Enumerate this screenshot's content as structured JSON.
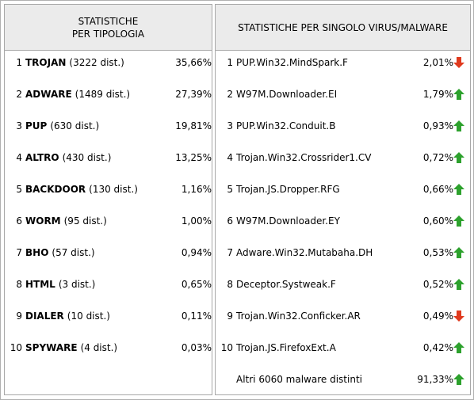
{
  "left": {
    "title": "STATISTICHE\nPER TIPOLOGIA",
    "rows": [
      {
        "rank": 1,
        "name": "TROJAN",
        "detail": "(3222 dist.)",
        "percent": "35,66%"
      },
      {
        "rank": 2,
        "name": "ADWARE",
        "detail": "(1489 dist.)",
        "percent": "27,39%"
      },
      {
        "rank": 3,
        "name": "PUP",
        "detail": "(630 dist.)",
        "percent": "19,81%"
      },
      {
        "rank": 4,
        "name": "ALTRO",
        "detail": "(430 dist.)",
        "percent": "13,25%"
      },
      {
        "rank": 5,
        "name": "BACKDOOR",
        "detail": "(130 dist.)",
        "percent": "1,16%"
      },
      {
        "rank": 6,
        "name": "WORM",
        "detail": "(95 dist.)",
        "percent": "1,00%"
      },
      {
        "rank": 7,
        "name": "BHO",
        "detail": "(57 dist.)",
        "percent": "0,94%"
      },
      {
        "rank": 8,
        "name": "HTML",
        "detail": "(3 dist.)",
        "percent": "0,65%"
      },
      {
        "rank": 9,
        "name": "DIALER",
        "detail": "(10 dist.)",
        "percent": "0,11%"
      },
      {
        "rank": 10,
        "name": "SPYWARE",
        "detail": "(4 dist.)",
        "percent": "0,03%"
      }
    ]
  },
  "right": {
    "title": "STATISTICHE PER SINGOLO VIRUS/MALWARE",
    "rows": [
      {
        "rank": 1,
        "name": "PUP.Win32.MindSpark.F",
        "percent": "2,01%",
        "trend": "down"
      },
      {
        "rank": 2,
        "name": "W97M.Downloader.EI",
        "percent": "1,79%",
        "trend": "up"
      },
      {
        "rank": 3,
        "name": "PUP.Win32.Conduit.B",
        "percent": "0,93%",
        "trend": "up"
      },
      {
        "rank": 4,
        "name": "Trojan.Win32.Crossrider1.CV",
        "percent": "0,72%",
        "trend": "up"
      },
      {
        "rank": 5,
        "name": "Trojan.JS.Dropper.RFG",
        "percent": "0,66%",
        "trend": "up"
      },
      {
        "rank": 6,
        "name": "W97M.Downloader.EY",
        "percent": "0,60%",
        "trend": "up"
      },
      {
        "rank": 7,
        "name": "Adware.Win32.Mutabaha.DH",
        "percent": "0,53%",
        "trend": "up"
      },
      {
        "rank": 8,
        "name": "Deceptor.Systweak.F",
        "percent": "0,52%",
        "trend": "up"
      },
      {
        "rank": 9,
        "name": "Trojan.Win32.Conficker.AR",
        "percent": "0,49%",
        "trend": "down"
      },
      {
        "rank": 10,
        "name": "Trojan.JS.FirefoxExt.A",
        "percent": "0,42%",
        "trend": "up"
      }
    ],
    "other": {
      "label": "Altri 6060 malware distinti",
      "percent": "91,33%",
      "trend": "up"
    }
  }
}
